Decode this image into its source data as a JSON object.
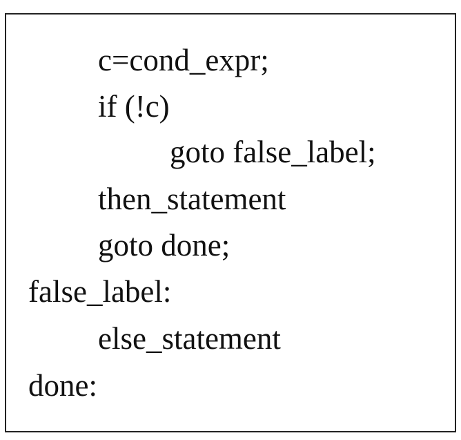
{
  "code": {
    "lines": [
      "c=cond_expr;",
      "if (!c)",
      "goto false_label;",
      "then_statement",
      "goto done;",
      "false_label:",
      "else_statement",
      "done:"
    ]
  }
}
